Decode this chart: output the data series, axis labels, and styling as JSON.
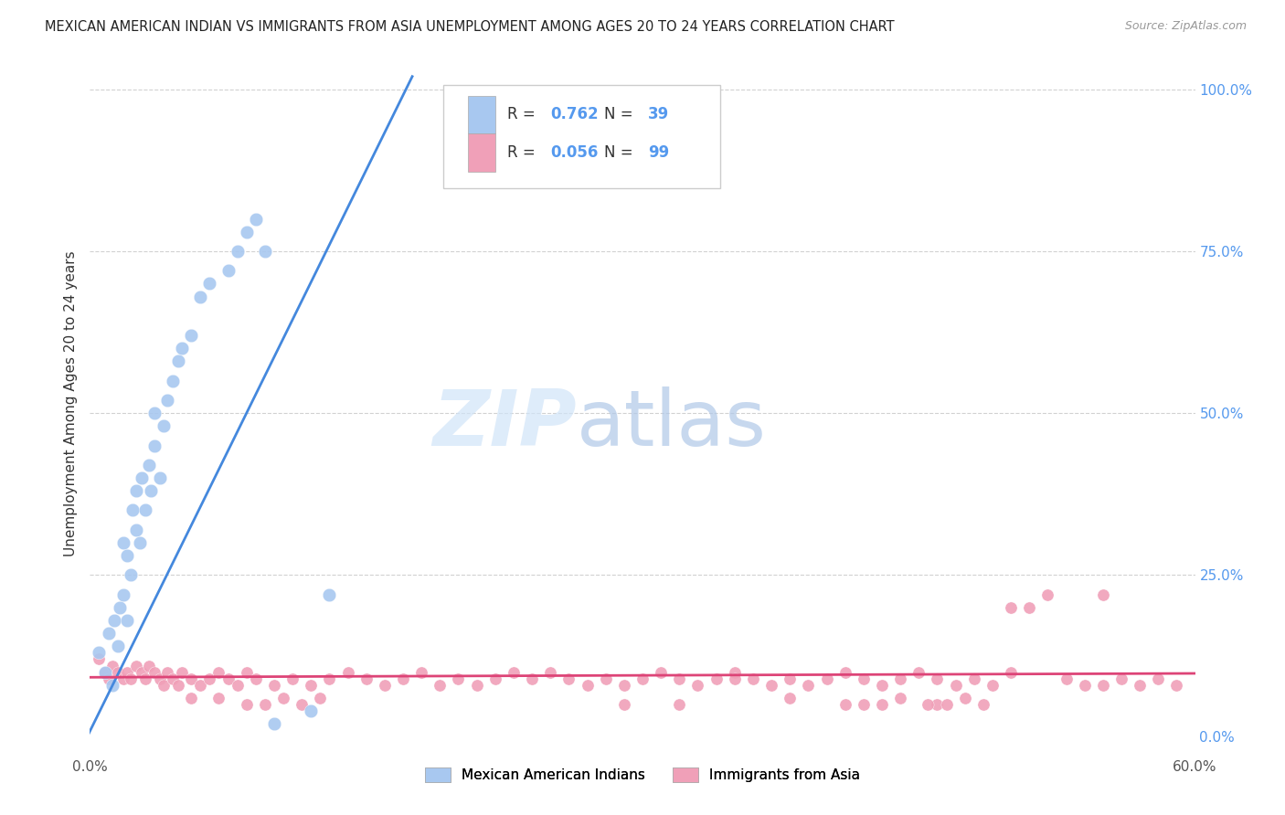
{
  "title": "MEXICAN AMERICAN INDIAN VS IMMIGRANTS FROM ASIA UNEMPLOYMENT AMONG AGES 20 TO 24 YEARS CORRELATION CHART",
  "source": "Source: ZipAtlas.com",
  "ylabel": "Unemployment Among Ages 20 to 24 years",
  "xmin": 0.0,
  "xmax": 0.6,
  "ymin": -0.02,
  "ymax": 1.05,
  "xticks": [
    0.0,
    0.6
  ],
  "xticklabels": [
    "0.0%",
    "60.0%"
  ],
  "yticks_right": [
    0.0,
    0.25,
    0.5,
    0.75,
    1.0
  ],
  "yticklabels_right": [
    "0.0%",
    "25.0%",
    "50.0%",
    "75.0%",
    "100.0%"
  ],
  "grid_yticks": [
    0.25,
    0.5,
    0.75,
    1.0
  ],
  "grid_color": "#cccccc",
  "background_color": "#ffffff",
  "blue_color": "#a8c8f0",
  "pink_color": "#f0a0b8",
  "blue_line_color": "#4488dd",
  "pink_line_color": "#dd4477",
  "right_axis_color": "#5599ee",
  "legend_R_blue": "0.762",
  "legend_N_blue": "39",
  "legend_R_pink": "0.056",
  "legend_N_pink": "99",
  "watermark_zip": "ZIP",
  "watermark_atlas": "atlas",
  "legend_label_blue": "Mexican American Indians",
  "legend_label_pink": "Immigrants from Asia",
  "blue_scatter_x": [
    0.005,
    0.008,
    0.01,
    0.012,
    0.013,
    0.015,
    0.016,
    0.018,
    0.018,
    0.02,
    0.02,
    0.022,
    0.023,
    0.025,
    0.025,
    0.027,
    0.028,
    0.03,
    0.032,
    0.033,
    0.035,
    0.035,
    0.038,
    0.04,
    0.042,
    0.045,
    0.048,
    0.05,
    0.055,
    0.06,
    0.065,
    0.075,
    0.08,
    0.085,
    0.09,
    0.095,
    0.1,
    0.12,
    0.13
  ],
  "blue_scatter_y": [
    0.13,
    0.1,
    0.16,
    0.08,
    0.18,
    0.14,
    0.2,
    0.22,
    0.3,
    0.18,
    0.28,
    0.25,
    0.35,
    0.32,
    0.38,
    0.3,
    0.4,
    0.35,
    0.42,
    0.38,
    0.45,
    0.5,
    0.4,
    0.48,
    0.52,
    0.55,
    0.58,
    0.6,
    0.62,
    0.68,
    0.7,
    0.72,
    0.75,
    0.78,
    0.8,
    0.75,
    0.02,
    0.04,
    0.22
  ],
  "pink_scatter_x": [
    0.005,
    0.008,
    0.01,
    0.012,
    0.015,
    0.018,
    0.02,
    0.022,
    0.025,
    0.028,
    0.03,
    0.032,
    0.035,
    0.038,
    0.04,
    0.042,
    0.045,
    0.048,
    0.05,
    0.055,
    0.06,
    0.065,
    0.07,
    0.075,
    0.08,
    0.085,
    0.09,
    0.1,
    0.11,
    0.12,
    0.13,
    0.14,
    0.15,
    0.16,
    0.17,
    0.18,
    0.19,
    0.2,
    0.21,
    0.22,
    0.23,
    0.24,
    0.25,
    0.26,
    0.27,
    0.28,
    0.29,
    0.3,
    0.31,
    0.32,
    0.33,
    0.34,
    0.35,
    0.36,
    0.37,
    0.38,
    0.39,
    0.4,
    0.41,
    0.42,
    0.43,
    0.44,
    0.45,
    0.46,
    0.47,
    0.48,
    0.49,
    0.5,
    0.51,
    0.52,
    0.53,
    0.54,
    0.55,
    0.56,
    0.57,
    0.58,
    0.59,
    0.35,
    0.5,
    0.55,
    0.42,
    0.46,
    0.38,
    0.29,
    0.32,
    0.41,
    0.455,
    0.465,
    0.475,
    0.485,
    0.055,
    0.07,
    0.085,
    0.095,
    0.105,
    0.115,
    0.125,
    0.43,
    0.44
  ],
  "pink_scatter_y": [
    0.12,
    0.1,
    0.09,
    0.11,
    0.1,
    0.09,
    0.1,
    0.09,
    0.11,
    0.1,
    0.09,
    0.11,
    0.1,
    0.09,
    0.08,
    0.1,
    0.09,
    0.08,
    0.1,
    0.09,
    0.08,
    0.09,
    0.1,
    0.09,
    0.08,
    0.1,
    0.09,
    0.08,
    0.09,
    0.08,
    0.09,
    0.1,
    0.09,
    0.08,
    0.09,
    0.1,
    0.08,
    0.09,
    0.08,
    0.09,
    0.1,
    0.09,
    0.1,
    0.09,
    0.08,
    0.09,
    0.08,
    0.09,
    0.1,
    0.09,
    0.08,
    0.09,
    0.1,
    0.09,
    0.08,
    0.09,
    0.08,
    0.09,
    0.1,
    0.09,
    0.08,
    0.09,
    0.1,
    0.09,
    0.08,
    0.09,
    0.08,
    0.2,
    0.2,
    0.22,
    0.09,
    0.08,
    0.22,
    0.09,
    0.08,
    0.09,
    0.08,
    0.09,
    0.1,
    0.08,
    0.05,
    0.05,
    0.06,
    0.05,
    0.05,
    0.05,
    0.05,
    0.05,
    0.06,
    0.05,
    0.06,
    0.06,
    0.05,
    0.05,
    0.06,
    0.05,
    0.06,
    0.05,
    0.06
  ],
  "blue_line_x": [
    -0.005,
    0.175
  ],
  "blue_line_y": [
    -0.02,
    1.02
  ],
  "pink_line_x": [
    0.0,
    0.6
  ],
  "pink_line_y": [
    0.092,
    0.098
  ]
}
